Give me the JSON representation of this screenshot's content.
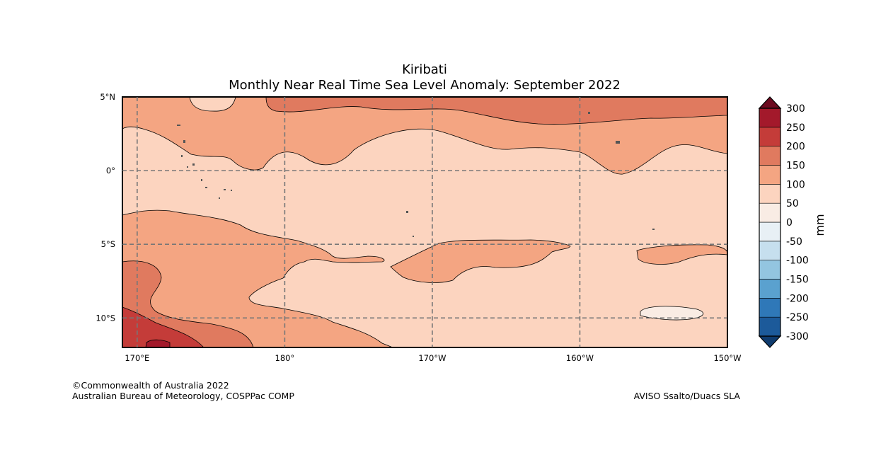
{
  "title": "Kiribati",
  "subtitle": "Monthly Near Real Time Sea Level Anomaly: September 2022",
  "map": {
    "lat_labels": [
      "5°N",
      "0°",
      "5°S",
      "10°S"
    ],
    "lat_values": [
      5,
      0,
      -5,
      -10
    ],
    "lon_labels": [
      "170°E",
      "180°",
      "170°W",
      "160°W",
      "150°W"
    ],
    "lon_values": [
      170,
      180,
      190,
      200,
      210
    ],
    "lon_range": [
      169,
      210
    ],
    "lat_range": [
      -12,
      5
    ]
  },
  "colorbar": {
    "unit": "mm",
    "levels": [
      -300,
      -250,
      -200,
      -150,
      -100,
      -50,
      0,
      50,
      100,
      150,
      200,
      250,
      300
    ],
    "labels": [
      "300",
      "250",
      "200",
      "150",
      "100",
      "50",
      "0",
      "-50",
      "-100",
      "-150",
      "-200",
      "-250",
      "-300"
    ],
    "colors": [
      "#0f3b6e",
      "#1c5a9a",
      "#2f78b8",
      "#5aa1cf",
      "#93c5e0",
      "#c6dfee",
      "#e8f0f5",
      "#f9ece4",
      "#fcd4bf",
      "#f4a582",
      "#e07a5f",
      "#c43c39",
      "#a3192b",
      "#6c0a1f"
    ],
    "fill_colors": {
      "zero_fifty": "#f9ece4",
      "fifty_hundred": "#fcd4bf",
      "hundred_150": "#f4a582",
      "r150_200": "#e07a5f",
      "r200_250": "#c43c39",
      "r250_300": "#a3192b"
    }
  },
  "credits": {
    "left_line1": "©Commonwealth of Australia 2022",
    "left_line2": "Australian Bureau of Meteorology, COSPPac COMP",
    "right": "AVISO Ssalto/Duacs SLA"
  }
}
